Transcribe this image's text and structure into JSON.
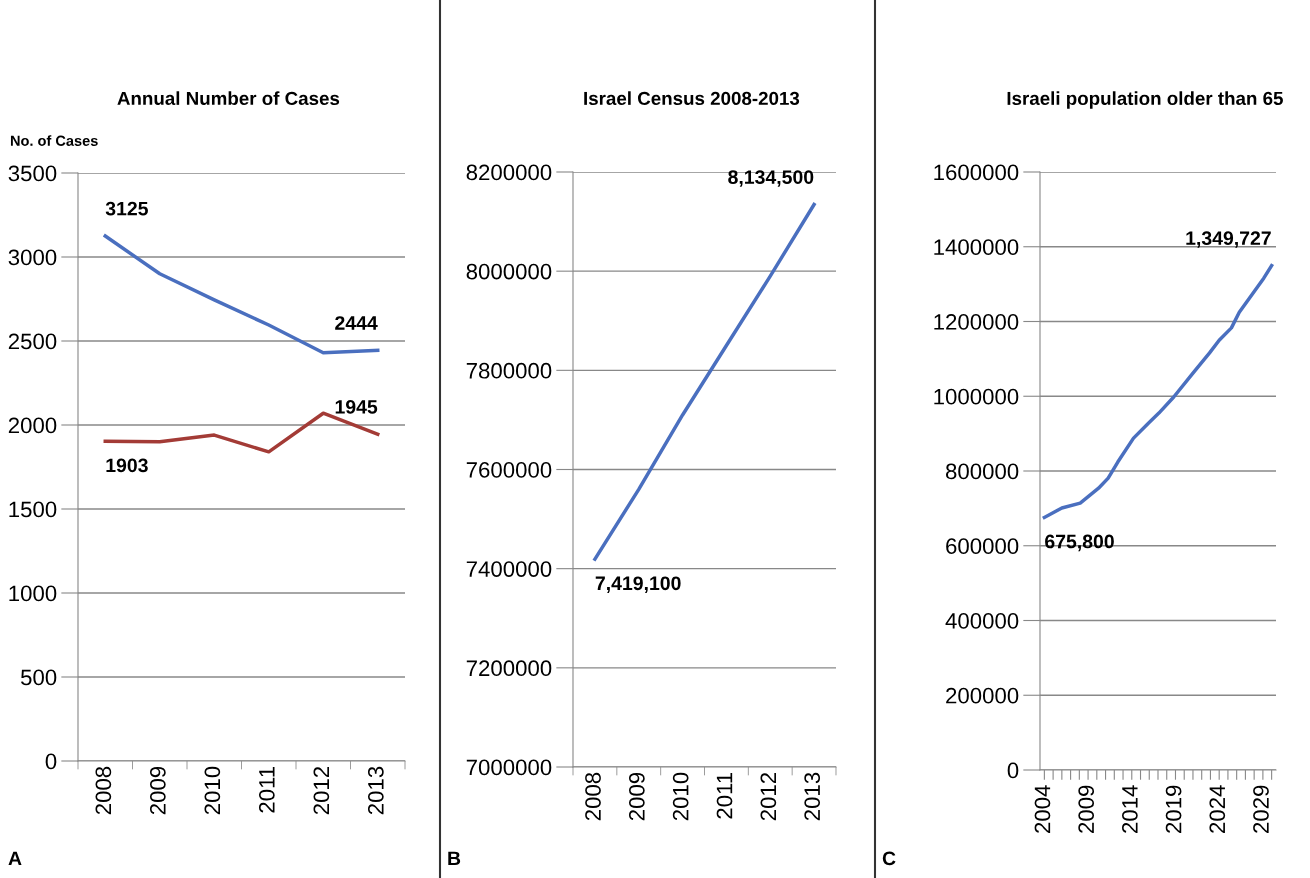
{
  "chart_data": [
    {
      "type": "line",
      "title": "Annual Number of Cases",
      "ylabel": "No. of Cases",
      "categories": [
        "2008",
        "2009",
        "2010",
        "2011",
        "2012",
        "2013"
      ],
      "series": [
        {
          "color": "#4a6fbf",
          "values": [
            3125,
            2900,
            2745,
            2595,
            2430,
            2444
          ],
          "value_labels": [
            "3125",
            null,
            null,
            null,
            null,
            "2444"
          ]
        },
        {
          "color": "#a33b36",
          "values": [
            1903,
            1900,
            1940,
            1840,
            2070,
            1945
          ],
          "value_labels": [
            "1903",
            null,
            null,
            null,
            null,
            "1945"
          ]
        }
      ],
      "ylim": [
        0,
        3500
      ],
      "yticks": [
        0,
        500,
        1000,
        1500,
        2000,
        2500,
        3000,
        3500
      ],
      "grid": "y",
      "legend": false,
      "annotations": [
        "A"
      ]
    },
    {
      "type": "line",
      "title": "Israel Census 2008-2013",
      "categories": [
        "2008",
        "2009",
        "2010",
        "2011",
        "2012",
        "2013"
      ],
      "series": [
        {
          "color": "#4a6fbf",
          "values": [
            7419100,
            7560000,
            7710000,
            7850000,
            7990000,
            8134500
          ],
          "value_labels": [
            "7,419,100",
            null,
            null,
            null,
            null,
            "8,134,500"
          ]
        }
      ],
      "ylim": [
        7000000,
        8200000
      ],
      "yticks": [
        7000000,
        7200000,
        7400000,
        7600000,
        7800000,
        8000000,
        8200000
      ],
      "grid": "y",
      "legend": false,
      "annotations": [
        "B"
      ]
    },
    {
      "type": "line",
      "title": "Israeli population older than 65",
      "series": [
        {
          "color": "#4a6fbf",
          "x": [
            2004,
            2006,
            2008.1,
            2010.2,
            2011.3,
            2012.4,
            2014.2,
            2015.9,
            2017.1,
            2018.8,
            2021,
            2022.9,
            2024,
            2025.4,
            2026.3,
            2029.1,
            2030
          ],
          "values": [
            675800,
            701000,
            714000,
            754000,
            781000,
            824000,
            888000,
            928000,
            955000,
            998000,
            1062000,
            1116000,
            1150000,
            1183000,
            1225000,
            1316000,
            1349727
          ],
          "value_labels": [
            "675,800",
            null,
            null,
            null,
            null,
            null,
            null,
            null,
            null,
            null,
            null,
            null,
            null,
            null,
            null,
            null,
            "1,349,727"
          ]
        }
      ],
      "xlim": [
        2003.5,
        2030.5
      ],
      "xticks": [
        2004,
        {
          "value": 2005,
          "label": null
        },
        {
          "value": 2006,
          "label": null
        },
        {
          "value": 2007,
          "label": null
        },
        {
          "value": 2008,
          "label": null
        },
        2009,
        {
          "value": 2010,
          "label": null
        },
        {
          "value": 2011,
          "label": null
        },
        {
          "value": 2012,
          "label": null
        },
        {
          "value": 2013,
          "label": null
        },
        2014,
        {
          "value": 2015,
          "label": null
        },
        {
          "value": 2016,
          "label": null
        },
        {
          "value": 2017,
          "label": null
        },
        {
          "value": 2018,
          "label": null
        },
        2019,
        {
          "value": 2020,
          "label": null
        },
        {
          "value": 2021,
          "label": null
        },
        {
          "value": 2022,
          "label": null
        },
        {
          "value": 2023,
          "label": null
        },
        2024,
        {
          "value": 2025,
          "label": null
        },
        {
          "value": 2026,
          "label": null
        },
        {
          "value": 2027,
          "label": null
        },
        {
          "value": 2028,
          "label": null
        },
        2029,
        {
          "value": 2030,
          "label": null
        }
      ],
      "ylim": [
        0,
        1600000
      ],
      "yticks": [
        0,
        200000,
        400000,
        600000,
        800000,
        1000000,
        1200000,
        1400000,
        1600000
      ],
      "grid": "y",
      "legend": false,
      "annotations": [
        "C"
      ]
    }
  ]
}
